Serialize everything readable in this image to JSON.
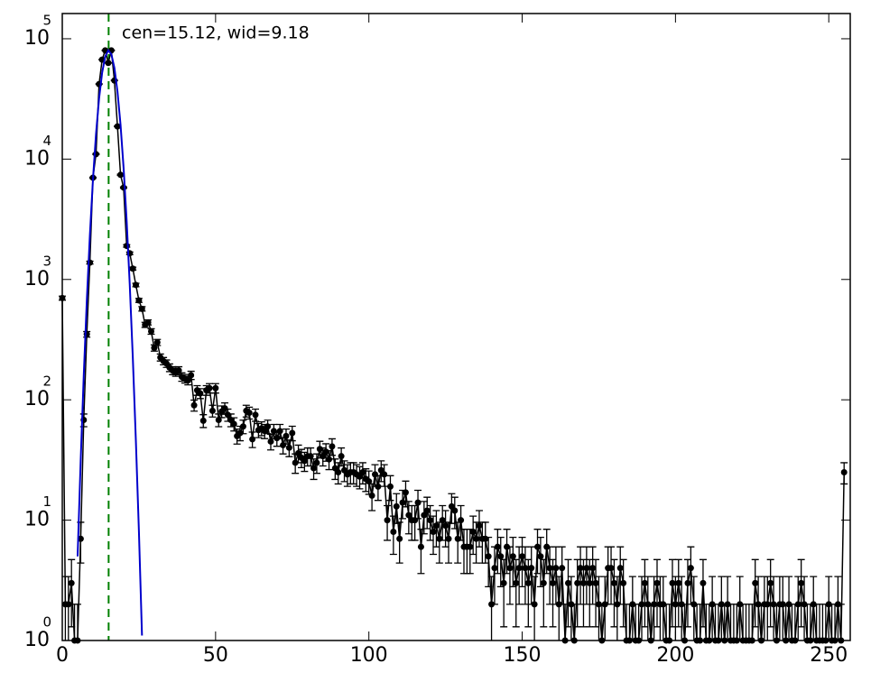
{
  "chart_data": {
    "type": "errorbar",
    "log_y": true,
    "annotation": "cen=15.12, wid=9.18",
    "annotation_color": "#008000",
    "vline": {
      "x": 15.12,
      "color": "#008000"
    },
    "xlim": [
      0,
      257
    ],
    "xticks": [
      0,
      50,
      100,
      150,
      200,
      250
    ],
    "ylim": [
      1,
      162000
    ],
    "yticks": [
      {
        "value": 1,
        "label": "10",
        "exponent": "0"
      },
      {
        "value": 10,
        "label": "10",
        "exponent": "1"
      },
      {
        "value": 100,
        "label": "10",
        "exponent": "2"
      },
      {
        "value": 1000,
        "label": "10",
        "exponent": "3"
      },
      {
        "value": 10000,
        "label": "10",
        "exponent": "4"
      },
      {
        "value": 100000,
        "label": "10",
        "exponent": "5"
      }
    ],
    "series": [
      {
        "color": "#000000",
        "x": [
          0,
          1,
          2,
          3,
          4,
          5,
          6,
          7,
          8,
          9,
          10,
          11,
          12,
          13,
          14,
          15,
          16,
          17,
          18,
          19,
          20,
          21,
          22,
          23,
          24,
          25,
          26,
          27,
          28,
          29,
          30,
          31,
          32,
          33,
          34,
          35,
          36,
          37,
          38,
          39,
          40,
          41,
          42,
          43,
          44,
          45,
          46,
          47,
          48,
          49,
          50,
          51,
          52,
          53,
          54,
          55,
          56,
          57,
          58,
          59,
          60,
          61,
          62,
          63,
          64,
          65,
          66,
          67,
          68,
          69,
          70,
          71,
          72,
          73,
          74,
          75,
          76,
          77,
          78,
          79,
          80,
          81,
          82,
          83,
          84,
          85,
          86,
          87,
          88,
          89,
          90,
          91,
          92,
          93,
          94,
          95,
          96,
          97,
          98,
          99,
          100,
          101,
          102,
          103,
          104,
          105,
          106,
          107,
          108,
          109,
          110,
          111,
          112,
          113,
          114,
          115,
          116,
          117,
          118,
          119,
          120,
          121,
          122,
          123,
          124,
          125,
          126,
          127,
          128,
          129,
          130,
          131,
          132,
          133,
          134,
          135,
          136,
          137,
          138,
          139,
          140,
          141,
          142,
          143,
          144,
          145,
          146,
          147,
          148,
          149,
          150,
          151,
          152,
          153,
          154,
          155,
          156,
          157,
          158,
          159,
          160,
          161,
          162,
          163,
          164,
          165,
          166,
          167,
          168,
          169,
          170,
          171,
          172,
          173,
          174,
          175,
          176,
          177,
          178,
          179,
          180,
          181,
          182,
          183,
          184,
          185,
          186,
          187,
          188,
          189,
          190,
          191,
          192,
          193,
          194,
          195,
          196,
          197,
          198,
          199,
          200,
          201,
          202,
          203,
          204,
          205,
          206,
          207,
          208,
          209,
          210,
          211,
          212,
          213,
          214,
          215,
          216,
          217,
          218,
          219,
          220,
          221,
          222,
          223,
          224,
          225,
          226,
          227,
          228,
          229,
          230,
          231,
          232,
          233,
          234,
          235,
          236,
          237,
          238,
          239,
          240,
          241,
          242,
          243,
          244,
          245,
          246,
          247,
          248,
          249,
          250,
          251,
          252,
          253,
          254,
          255
        ],
        "values": [
          700,
          2,
          2,
          3,
          1,
          1,
          7,
          68,
          350,
          1380,
          7000,
          11000,
          42000,
          67000,
          80000,
          63000,
          80000,
          45000,
          18700,
          7400,
          5800,
          1900,
          1650,
          1230,
          900,
          670,
          570,
          420,
          440,
          370,
          270,
          300,
          225,
          210,
          200,
          185,
          175,
          170,
          175,
          155,
          150,
          145,
          160,
          90,
          120,
          113,
          67,
          120,
          125,
          81,
          125,
          68,
          80,
          85,
          75,
          68,
          63,
          50,
          53,
          60,
          81,
          78,
          47,
          75,
          56,
          58,
          55,
          60,
          45,
          55,
          48,
          55,
          42,
          50,
          40,
          53,
          30,
          36,
          33,
          31,
          34,
          34,
          27,
          30,
          39,
          34,
          37,
          32,
          41,
          27,
          25,
          34,
          26,
          24,
          25,
          25,
          24,
          23,
          25,
          22,
          21,
          16,
          24,
          19,
          26,
          24,
          10,
          19,
          8,
          13,
          7,
          14,
          17,
          11,
          10,
          10,
          14,
          6,
          11,
          12,
          10,
          8,
          9,
          7,
          10,
          9,
          7,
          13,
          12,
          7,
          10,
          6,
          6,
          6,
          8,
          7,
          9,
          7,
          7,
          5,
          2,
          4,
          6,
          5,
          3,
          6,
          4,
          5,
          3,
          4,
          5,
          4,
          3,
          4,
          2,
          6,
          5,
          3,
          6,
          4,
          3,
          4,
          2,
          4,
          1,
          3,
          2,
          1,
          3,
          4,
          3,
          4,
          3,
          4,
          3,
          2,
          1,
          2,
          4,
          4,
          3,
          2,
          4,
          3,
          1,
          1,
          2,
          1,
          1,
          2,
          3,
          2,
          1,
          2,
          3,
          2,
          2,
          1,
          1,
          3,
          2,
          3,
          2,
          1,
          3,
          4,
          2,
          1,
          1,
          3,
          1,
          1,
          2,
          1,
          1,
          2,
          1,
          2,
          1,
          1,
          1,
          2,
          1,
          1,
          1,
          1,
          3,
          2,
          1,
          2,
          2,
          3,
          2,
          1,
          2,
          2,
          1,
          2,
          1,
          1,
          2,
          3,
          2,
          1,
          1,
          2,
          1,
          1,
          1,
          1,
          2,
          1,
          1,
          2,
          1,
          25
        ],
        "errors": [
          26.5,
          1.4,
          1.4,
          1.7,
          1,
          1,
          2.6,
          8.2,
          18.7,
          37.1,
          83.7,
          104.9,
          204.9,
          258.8,
          282.8,
          251,
          282.8,
          212.1,
          136.7,
          86,
          76.2,
          43.6,
          40.6,
          35.1,
          30,
          25.9,
          23.9,
          20.5,
          21,
          19.2,
          16.4,
          17.3,
          15,
          14.5,
          14.1,
          13.6,
          13.2,
          13,
          13.2,
          12.4,
          12.2,
          12,
          12.6,
          9.5,
          11,
          10.6,
          8.2,
          11,
          11.2,
          9,
          11.2,
          8.2,
          8.9,
          9.2,
          8.7,
          8.2,
          7.9,
          7.1,
          7.3,
          7.7,
          9,
          8.8,
          6.9,
          8.7,
          7.5,
          7.6,
          7.4,
          7.7,
          6.7,
          7.4,
          6.9,
          7.4,
          6.5,
          7.1,
          6.3,
          7.3,
          5.5,
          6,
          5.7,
          5.6,
          5.8,
          5.8,
          5.2,
          5.5,
          6.2,
          5.8,
          6.1,
          5.7,
          6.4,
          5.2,
          5,
          5.8,
          5.1,
          4.9,
          5,
          5,
          4.9,
          4.8,
          5,
          4.7,
          4.6,
          4,
          4.9,
          4.4,
          5.1,
          4.9,
          3.2,
          4.4,
          2.8,
          3.6,
          2.6,
          3.7,
          4.1,
          3.3,
          3.2,
          3.2,
          3.7,
          2.4,
          3.3,
          3.5,
          3.2,
          2.8,
          3,
          2.6,
          3.2,
          3,
          2.6,
          3.6,
          3.5,
          2.6,
          3.2,
          2.4,
          2.4,
          2.4,
          2.8,
          2.6,
          3,
          2.6,
          2.6,
          2.2,
          1.4,
          2,
          2.4,
          2.2,
          1.7,
          2.4,
          2,
          2.2,
          1.7,
          2,
          2.2,
          2,
          1.7,
          2,
          1.4,
          2.4,
          2.2,
          1.7,
          2.4,
          2,
          1.7,
          2,
          1.4,
          2,
          1,
          1.7,
          1.4,
          1,
          1.7,
          2,
          1.7,
          2,
          1.7,
          2,
          1.7,
          1.4,
          1,
          1.4,
          2,
          2,
          1.7,
          1.4,
          2,
          1.7,
          1,
          1,
          1.4,
          1,
          1,
          1.4,
          1.7,
          1.4,
          1,
          1.4,
          1.7,
          1.4,
          1.4,
          1,
          1,
          1.7,
          1.4,
          1.7,
          1.4,
          1,
          1.7,
          2,
          1.4,
          1,
          1,
          1.7,
          1,
          1,
          1.4,
          1,
          1,
          1.4,
          1,
          1.4,
          1,
          1,
          1,
          1.4,
          1,
          1,
          1,
          1,
          1.7,
          1.4,
          1,
          1.4,
          1.4,
          1.7,
          1.4,
          1,
          1.4,
          1.4,
          1,
          1.4,
          1,
          1,
          1.4,
          1.7,
          1.4,
          1,
          1,
          1.4,
          1,
          1,
          1,
          1,
          1.4,
          1,
          1,
          1.4,
          1,
          5
        ]
      },
      {
        "color": "#0000cc",
        "kind": "fit",
        "x": [
          5,
          6,
          7,
          8,
          9,
          10,
          11,
          12,
          13,
          14,
          15,
          16,
          17,
          18,
          19,
          20,
          21,
          22,
          23,
          24,
          25,
          26
        ],
        "values": [
          5,
          31,
          158,
          665,
          2320,
          6720,
          16100,
          31900,
          52300,
          71100,
          80000,
          74400,
          57300,
          36500,
          19300,
          8430,
          3040,
          915,
          226,
          46,
          8,
          1.1
        ]
      }
    ]
  }
}
